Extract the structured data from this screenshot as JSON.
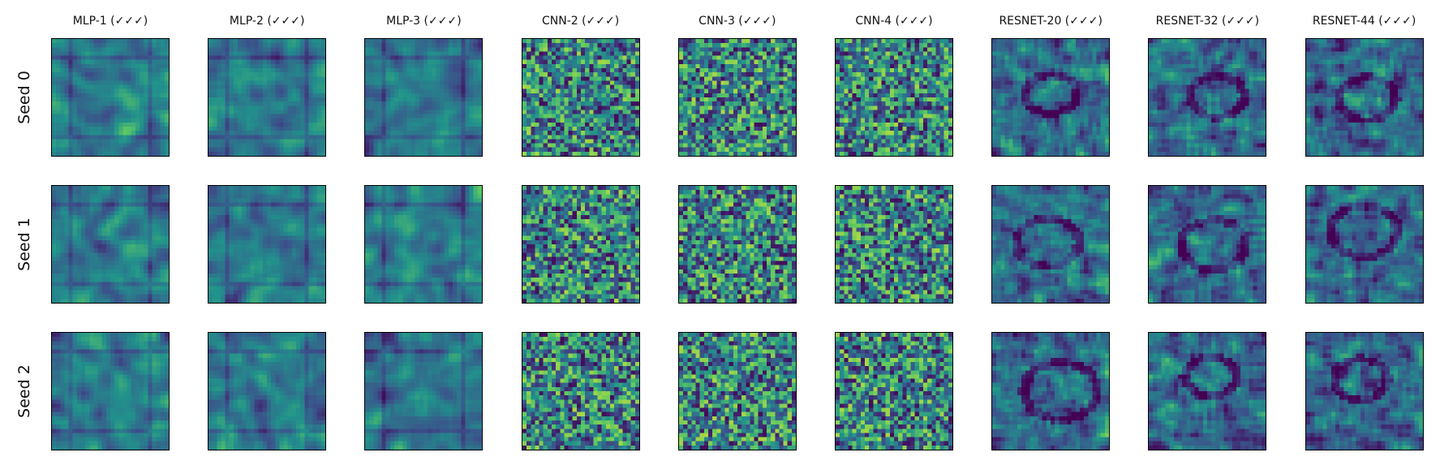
{
  "chart_data": {
    "type": "heatmap",
    "title": "",
    "xlabel": "",
    "ylabel": "",
    "columns": [
      "MLP-1 (✓✓✓)",
      "MLP-2 (✓✓✓)",
      "MLP-3 (✓✓✓)",
      "CNN-2 (✓✓✓)",
      "CNN-3 (✓✓✓)",
      "CNN-4 (✓✓✓)",
      "RESNET-20 (✓✓✓)",
      "RESNET-32 (✓✓✓)",
      "RESNET-44 (✓✓✓)"
    ],
    "rows": [
      "Seed 0",
      "Seed 1",
      "Seed 2"
    ],
    "colormap": "viridis",
    "grid": false,
    "axis_ticks": false
  },
  "colors": {
    "viridis": [
      "#440154",
      "#3b528b",
      "#21918c",
      "#5ec962",
      "#fde725"
    ]
  }
}
